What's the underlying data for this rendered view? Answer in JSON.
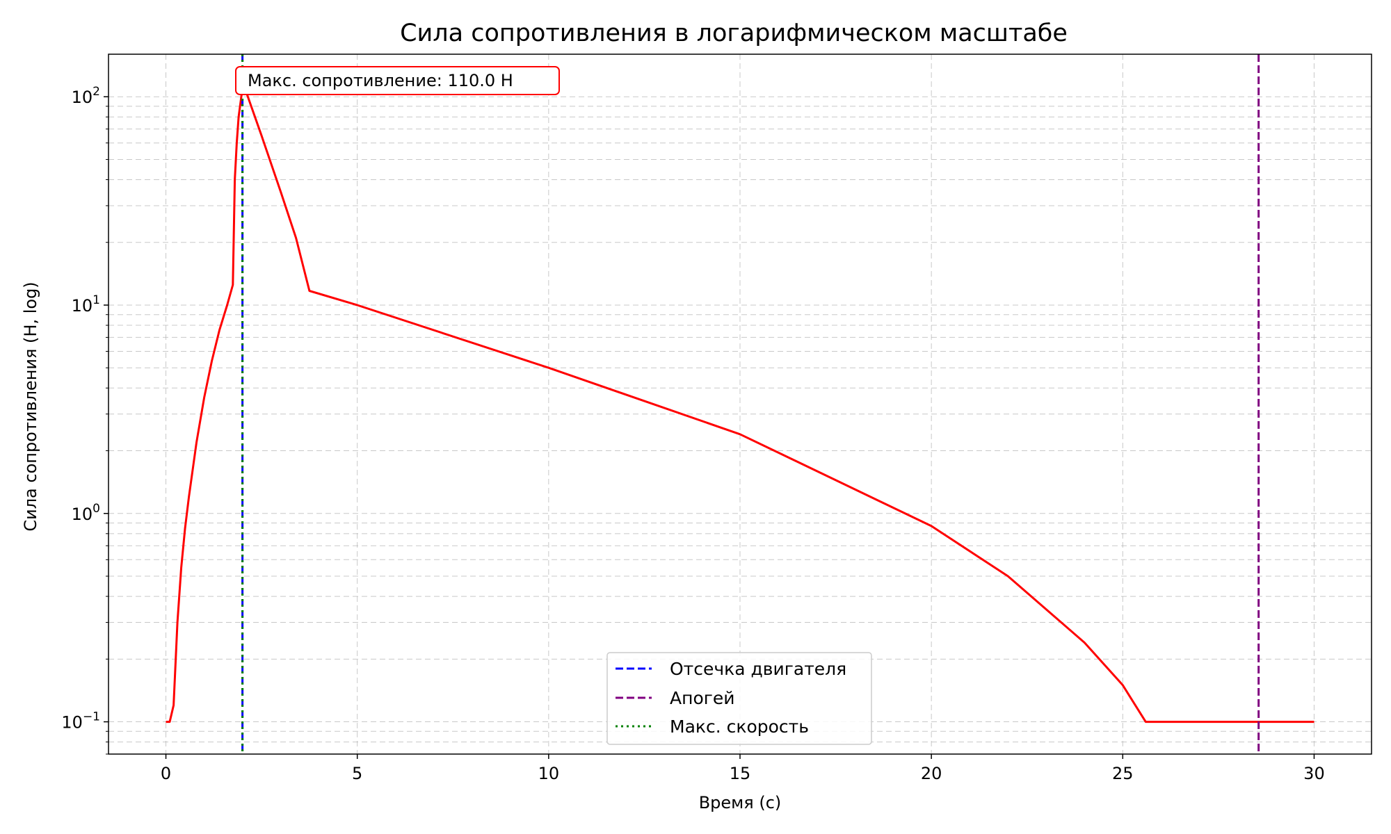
{
  "chart_data": {
    "type": "line",
    "title": "Сила сопротивления в логарифмическом масштабе",
    "xlabel": "Время (с)",
    "ylabel": "Сила сопротивления (Н, log)",
    "xlim": [
      -1.5,
      31.5
    ],
    "ylim": [
      0.07,
      160
    ],
    "yscale": "log",
    "grid": true,
    "x_ticks": [
      0,
      5,
      10,
      15,
      20,
      25,
      30
    ],
    "x_tick_labels": [
      "0",
      "5",
      "10",
      "15",
      "20",
      "25",
      "30"
    ],
    "y_ticks": [
      {
        "value": 0.1,
        "base": "10",
        "exp": "−1"
      },
      {
        "value": 1,
        "base": "10",
        "exp": "0"
      },
      {
        "value": 10,
        "base": "10",
        "exp": "1"
      },
      {
        "value": 100,
        "base": "10",
        "exp": "2"
      }
    ],
    "series": [
      {
        "color": "#ff0000",
        "x": [
          0.0,
          0.1,
          0.2,
          0.3,
          0.4,
          0.5,
          0.6,
          0.8,
          1.0,
          1.2,
          1.4,
          1.6,
          1.75,
          1.8,
          1.85,
          1.9,
          2.0,
          2.1,
          2.5,
          3.0,
          3.4,
          3.75,
          5.0,
          10.0,
          15.0,
          20.0,
          22.0,
          24.0,
          25.0,
          25.6,
          30.0
        ],
        "y": [
          0.1,
          0.1,
          0.12,
          0.3,
          0.55,
          0.85,
          1.2,
          2.2,
          3.6,
          5.4,
          7.6,
          10.0,
          12.5,
          40.0,
          60.0,
          80.0,
          110.0,
          105.0,
          65.0,
          35.0,
          21.0,
          11.7,
          10.0,
          5.0,
          2.4,
          0.87,
          0.5,
          0.24,
          0.15,
          0.1,
          0.1
        ]
      }
    ],
    "vlines": [
      {
        "x": 2.0,
        "label": "Отсечка двигателя",
        "color": "#0000ff",
        "style": "dashed"
      },
      {
        "x": 28.55,
        "label": "Апогей",
        "color": "#800080",
        "style": "dashed"
      },
      {
        "x": 2.0,
        "label": "Макс. скорость",
        "color": "#008000",
        "style": "dotted"
      }
    ],
    "annotation": {
      "text": "Макс. сопротивление: 110.0 Н",
      "x": 2.0,
      "y": 110.0,
      "color": "#ff0000"
    },
    "legend_position": "lower-center"
  }
}
